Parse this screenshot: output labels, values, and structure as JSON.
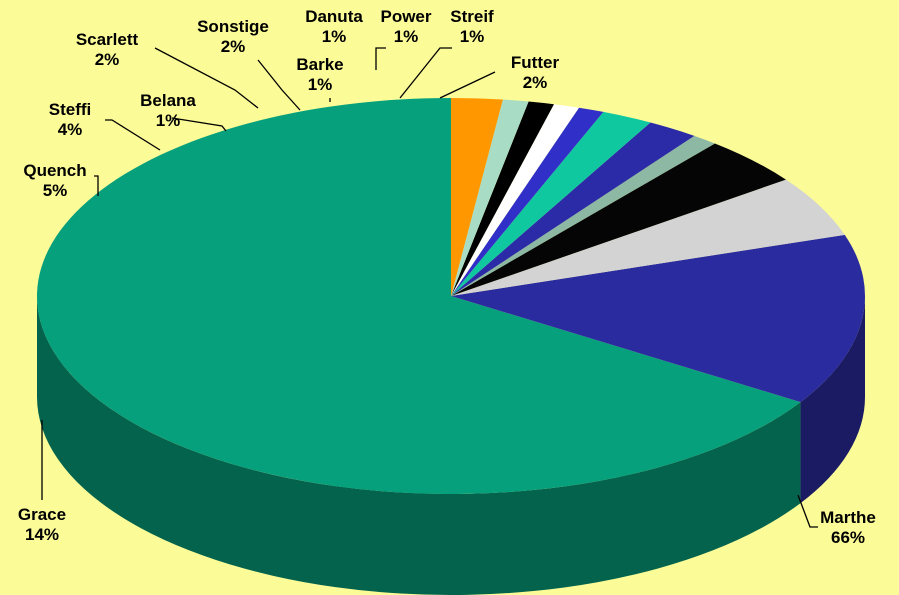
{
  "chart_data": {
    "type": "pie",
    "style": "3d",
    "title": "",
    "background": "#fbfb98",
    "slices": [
      {
        "label": "Marthe",
        "value": 66,
        "pct": "66%",
        "color": "#07a07c"
      },
      {
        "label": "Grace",
        "value": 14,
        "pct": "14%",
        "color": "#2b2ba0"
      },
      {
        "label": "Quench",
        "value": 5,
        "pct": "5%",
        "color": "#d3d3d3"
      },
      {
        "label": "Steffi",
        "value": 4,
        "pct": "4%",
        "color": "#050505"
      },
      {
        "label": "Belana",
        "value": 1,
        "pct": "1%",
        "color": "#8cb8a4"
      },
      {
        "label": "Scarlett",
        "value": 2,
        "pct": "2%",
        "color": "#2b2ba8"
      },
      {
        "label": "Sonstige",
        "value": 2,
        "pct": "2%",
        "color": "#10c8a0"
      },
      {
        "label": "Barke",
        "value": 1,
        "pct": "1%",
        "color": "#3030c8"
      },
      {
        "label": "Danuta",
        "value": 1,
        "pct": "1%",
        "color": "#ffffff"
      },
      {
        "label": "Power",
        "value": 1,
        "pct": "1%",
        "color": "#000000"
      },
      {
        "label": "Streif",
        "value": 1,
        "pct": "1%",
        "color": "#a8dcc4"
      },
      {
        "label": "Futter",
        "value": 2,
        "pct": "2%",
        "color": "#ff9800"
      }
    ]
  }
}
